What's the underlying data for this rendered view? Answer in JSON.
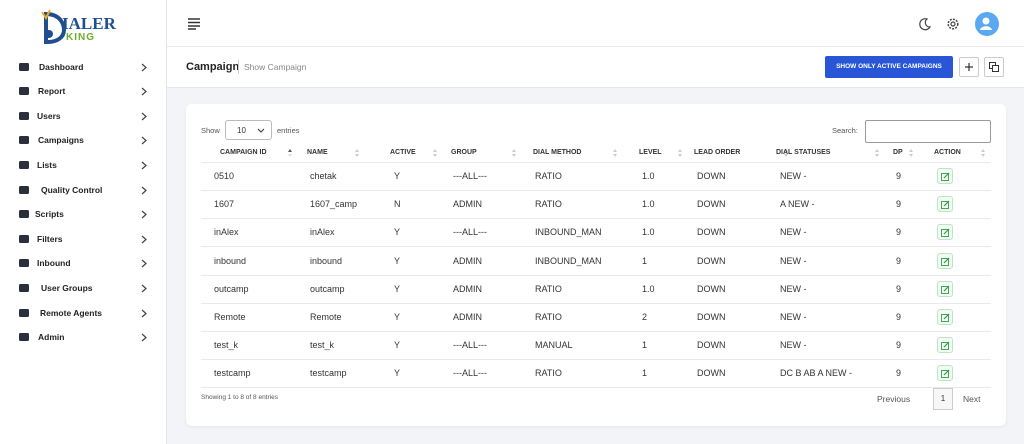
{
  "logo": {
    "line1": "IALER",
    "line2": "KING"
  },
  "sidebar": [
    "Dashboard",
    "Report",
    "Users",
    "Campaigns",
    "Lists",
    "Quality Control",
    "Scripts",
    "Filters",
    "Inbound",
    "User Groups",
    "Remote Agents",
    "Admin"
  ],
  "header": {
    "title": "Campaign",
    "breadcrumb": "Show Campaign",
    "button": "SHOW ONLY ACTIVE CAMPAIGNS"
  },
  "table": {
    "show": "Show",
    "page_length": "10",
    "entries": "entries",
    "search": "Search:",
    "columns": [
      "CAMPAIGN ID",
      "NAME",
      "ACTIVE",
      "GROUP",
      "DIAL METHOD",
      "LEVEL",
      "LEAD ORDER",
      "DIAL STATUSES",
      "DP",
      "ACTION"
    ],
    "rows": [
      [
        "0510",
        "chetak",
        "Y",
        "---ALL---",
        "RATIO",
        "1.0",
        "DOWN",
        "NEW -",
        "9"
      ],
      [
        "1607",
        "1607_camp",
        "N",
        "ADMIN",
        "RATIO",
        "1.0",
        "DOWN",
        "A NEW -",
        "9"
      ],
      [
        "inAlex",
        "inAlex",
        "Y",
        "---ALL---",
        "INBOUND_MAN",
        "1.0",
        "DOWN",
        "NEW -",
        "9"
      ],
      [
        "inbound",
        "inbound",
        "Y",
        "ADMIN",
        "INBOUND_MAN",
        "1",
        "DOWN",
        "NEW -",
        "9"
      ],
      [
        "outcamp",
        "outcamp",
        "Y",
        "ADMIN",
        "RATIO",
        "1.0",
        "DOWN",
        "NEW -",
        "9"
      ],
      [
        "Remote",
        "Remote",
        "Y",
        "ADMIN",
        "RATIO",
        "2",
        "DOWN",
        "NEW -",
        "9"
      ],
      [
        "test_k",
        "test_k",
        "Y",
        "---ALL---",
        "MANUAL",
        "1",
        "DOWN",
        "NEW -",
        "9"
      ],
      [
        "testcamp",
        "testcamp",
        "Y",
        "---ALL---",
        "RATIO",
        "1",
        "DOWN",
        "DC B AB A NEW -",
        "9"
      ]
    ],
    "info": "Showing 1 to 8 of 8 entries",
    "pagination": [
      "Previous",
      "1",
      "Next"
    ]
  }
}
